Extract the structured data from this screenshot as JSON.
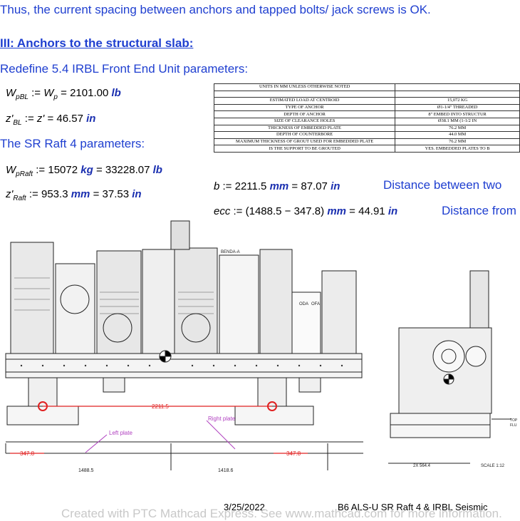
{
  "heading_ok": "Thus, the current spacing between anchors and tapped bolts/ jack screws is OK.",
  "section_title": "III: Anchors to the structural slab:",
  "redefine_title": "Redefine 5.4 IRBL Front End Unit parameters:",
  "eq_wpbl": {
    "lhs": "W",
    "lhs_sub": "pBL",
    "assign": ":=",
    "mid": "W",
    "mid_sub": "p",
    "eq": "=",
    "value": "2101.00",
    "unit": "lb"
  },
  "eq_zbl": {
    "lhs": "z'",
    "lhs_sub": "BL",
    "assign": ":=",
    "mid": "z'",
    "eq": "=",
    "value": "46.57",
    "unit": "in"
  },
  "raft_title": "The SR Raft 4 parameters:",
  "eq_wpraft": {
    "lhs": "W",
    "lhs_sub": "pRaft",
    "assign": ":=",
    "value1": "15072",
    "unit1": "kg",
    "eq": "=",
    "value2": "33228.07",
    "unit2": "lb"
  },
  "eq_zraft": {
    "lhs": "z'",
    "lhs_sub": "Raft",
    "assign": ":=",
    "value1": "953.3",
    "unit1": "mm",
    "eq": "=",
    "value2": "37.53",
    "unit2": "in"
  },
  "eq_b": {
    "lhs": "b",
    "assign": ":=",
    "value1": "2211.5",
    "unit1": "mm",
    "eq": "=",
    "value2": "87.07",
    "unit2": "in"
  },
  "eq_ecc": {
    "lhs": "ecc",
    "assign": ":=",
    "value1": "(1488.5 − 347.8)",
    "unit1": "mm",
    "eq": "=",
    "value2": "44.91",
    "unit2": "in"
  },
  "note_b": "Distance between two",
  "note_ecc": "Distance from",
  "spec_table": {
    "header": "UNITS IN MM UNLESS OTHERWISE NOTED",
    "rows": [
      [
        "ESTIMATED LOAD AT CENTROID",
        "15,072 KG"
      ],
      [
        "TYPE OF ANCHOR",
        "Ø1-1/4\" THREADED"
      ],
      [
        "DEPTH OF ANCHOR",
        "8\" EMBED INTO STRUCTUR"
      ],
      [
        "SIZE OF CLEARANCE HOLES",
        "Ø38.1 MM (1-1/2 IN"
      ],
      [
        "THICKNESS OF EMBEDDED PLATE",
        "76.2 MM"
      ],
      [
        "DEPTH OF COUNTERBORE",
        "44.0 MM"
      ],
      [
        "MAXIMUM THICKNESS OF GROUT USED FOR EMBEDDED PLATE",
        "76.2 MM"
      ],
      [
        "IS THE SUPPORT TO BE GROUTED",
        "YES. EMBEDDED PLATES TO B"
      ]
    ]
  },
  "drawing": {
    "label_2211": "2211.5",
    "label_right_plate": "Right plate",
    "label_left_plate": "Left plate",
    "label_347_left": "347.8",
    "label_347_right": "347.8",
    "label_1488": "1488.5",
    "label_1418": "1418.6",
    "label_benda": "BENDA-A",
    "label_oda": "ODA",
    "label_ofa": "OFA",
    "label_2x564": "2X 564.4",
    "label_scale": "SCALE 1:12",
    "label_top": "TOP",
    "label_flu": "FLU",
    "accent_red": "#e02020",
    "accent_purple": "#b040c0"
  },
  "footer": {
    "date": "3/25/2022",
    "doc_title": "B6 ALS-U SR Raft 4 & IRBL Seismic",
    "watermark": "Created with PTC Mathcad Express. See www.mathcad.com for more information."
  }
}
